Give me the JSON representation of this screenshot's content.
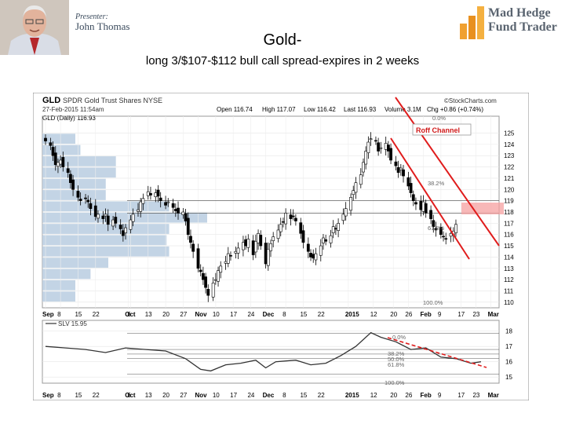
{
  "header": {
    "presenter_label": "Presenter:",
    "presenter_name": "John Thomas",
    "logo_line1": "Mad Hedge",
    "logo_line2": "Fund Trader",
    "title": "Gold-",
    "subtitle": "long 3/$107-$112 bull call spread-expires in 2 weeks"
  },
  "chart_data": [
    {
      "type": "candlestick",
      "symbol": "GLD",
      "name": "SPDR Gold Trust Shares NYSE",
      "date": "27-Feb-2015 11:54am",
      "source": "©StockCharts.com",
      "series_label": "GLD (Daily) 116.93",
      "quote": {
        "open": "Open 116.74",
        "high": "High 117.07",
        "low": "Low 116.42",
        "last": "Last 116.93",
        "volume": "Volume 3.1M",
        "chg": "Chg +0.86 (+0.74%)"
      },
      "annotation": "Roff Channel",
      "fib_labels": [
        "38.2%",
        "61.8%",
        "100.0%",
        "0.0%"
      ],
      "ylim": [
        109.5,
        126.5
      ],
      "y_ticks": [
        110,
        111,
        112,
        113,
        114,
        115,
        116,
        117,
        118,
        119,
        120,
        121,
        122,
        123,
        124,
        125
      ],
      "x_ticks": [
        "Sep",
        "8",
        "15",
        "22",
        "Oct",
        "6",
        "13",
        "20",
        "27",
        "Nov",
        "10",
        "17",
        "24",
        "Dec",
        "8",
        "15",
        "22",
        "2015",
        "12",
        "20",
        "26",
        "Feb",
        "9",
        "17",
        "23",
        "Mar"
      ],
      "x_tick_days": [
        0,
        6,
        13,
        20,
        33,
        34,
        41,
        48,
        55,
        61,
        68,
        75,
        82,
        88,
        96,
        103,
        110,
        121,
        131,
        139,
        145,
        151,
        158,
        166,
        172,
        178
      ],
      "volume_by_price": [
        {
          "low": 124,
          "high": 125,
          "size": 0.26
        },
        {
          "low": 123,
          "high": 124,
          "size": 0.3
        },
        {
          "low": 122,
          "high": 123,
          "size": 0.58
        },
        {
          "low": 121,
          "high": 122,
          "size": 0.58
        },
        {
          "low": 120,
          "high": 121,
          "size": 0.5
        },
        {
          "low": 119,
          "high": 120,
          "size": 0.5
        },
        {
          "low": 118,
          "high": 119,
          "size": 1.0
        },
        {
          "low": 117,
          "high": 118,
          "size": 1.3
        },
        {
          "low": 116,
          "high": 117,
          "size": 1.0
        },
        {
          "low": 115,
          "high": 116,
          "size": 0.98
        },
        {
          "low": 114,
          "high": 115,
          "size": 1.0
        },
        {
          "low": 113,
          "high": 114,
          "size": 0.52
        },
        {
          "low": 112,
          "high": 113,
          "size": 0.38
        },
        {
          "low": 111,
          "high": 112,
          "size": 0.26
        },
        {
          "low": 110,
          "high": 111,
          "size": 0.26
        }
      ],
      "closes": [
        {
          "day": 0,
          "close": 124.3
        },
        {
          "day": 2,
          "close": 123.9
        },
        {
          "day": 3,
          "close": 123.0
        },
        {
          "day": 4,
          "close": 122.2
        },
        {
          "day": 5,
          "close": 122.4
        },
        {
          "day": 6,
          "close": 122.6
        },
        {
          "day": 7,
          "close": 122.0
        },
        {
          "day": 9,
          "close": 121.5
        },
        {
          "day": 10,
          "close": 120.6
        },
        {
          "day": 11,
          "close": 120.0
        },
        {
          "day": 13,
          "close": 119.3
        },
        {
          "day": 14,
          "close": 119.0
        },
        {
          "day": 16,
          "close": 119.2
        },
        {
          "day": 17,
          "close": 118.9
        },
        {
          "day": 18,
          "close": 118.3
        },
        {
          "day": 20,
          "close": 117.6
        },
        {
          "day": 21,
          "close": 117.8
        },
        {
          "day": 23,
          "close": 117.4
        },
        {
          "day": 24,
          "close": 117.8
        },
        {
          "day": 25,
          "close": 116.9
        },
        {
          "day": 27,
          "close": 117.3
        },
        {
          "day": 28,
          "close": 117.0
        },
        {
          "day": 30,
          "close": 116.5
        },
        {
          "day": 31,
          "close": 115.9
        },
        {
          "day": 32,
          "close": 116.6
        },
        {
          "day": 34,
          "close": 117.3
        },
        {
          "day": 35,
          "close": 117.8
        },
        {
          "day": 37,
          "close": 118.2
        },
        {
          "day": 38,
          "close": 118.9
        },
        {
          "day": 39,
          "close": 119.2
        },
        {
          "day": 41,
          "close": 119.8
        },
        {
          "day": 42,
          "close": 119.5
        },
        {
          "day": 44,
          "close": 119.7
        },
        {
          "day": 45,
          "close": 119.4
        },
        {
          "day": 46,
          "close": 119.0
        },
        {
          "day": 48,
          "close": 118.6
        },
        {
          "day": 49,
          "close": 118.9
        },
        {
          "day": 51,
          "close": 118.4
        },
        {
          "day": 52,
          "close": 118.1
        },
        {
          "day": 53,
          "close": 117.9
        },
        {
          "day": 55,
          "close": 118.0
        },
        {
          "day": 56,
          "close": 117.2
        },
        {
          "day": 57,
          "close": 116.0
        },
        {
          "day": 58,
          "close": 115.3
        },
        {
          "day": 59,
          "close": 114.5
        },
        {
          "day": 61,
          "close": 113.0
        },
        {
          "day": 62,
          "close": 112.7
        },
        {
          "day": 63,
          "close": 112.0
        },
        {
          "day": 64,
          "close": 111.3
        },
        {
          "day": 65,
          "close": 110.6
        },
        {
          "day": 67,
          "close": 111.7
        },
        {
          "day": 68,
          "close": 112.0
        },
        {
          "day": 69,
          "close": 112.8
        },
        {
          "day": 70,
          "close": 113.2
        },
        {
          "day": 72,
          "close": 113.6
        },
        {
          "day": 73,
          "close": 114.3
        },
        {
          "day": 74,
          "close": 114.1
        },
        {
          "day": 76,
          "close": 114.5
        },
        {
          "day": 77,
          "close": 114.8
        },
        {
          "day": 79,
          "close": 115.3
        },
        {
          "day": 80,
          "close": 115.0
        },
        {
          "day": 81,
          "close": 115.6
        },
        {
          "day": 83,
          "close": 114.2
        },
        {
          "day": 84,
          "close": 115.4
        },
        {
          "day": 85,
          "close": 116.1
        },
        {
          "day": 86,
          "close": 115.0
        },
        {
          "day": 88,
          "close": 113.4
        },
        {
          "day": 89,
          "close": 114.7
        },
        {
          "day": 90,
          "close": 115.2
        },
        {
          "day": 91,
          "close": 115.8
        },
        {
          "day": 93,
          "close": 116.4
        },
        {
          "day": 94,
          "close": 116.9
        },
        {
          "day": 95,
          "close": 117.1
        },
        {
          "day": 96,
          "close": 117.9
        },
        {
          "day": 98,
          "close": 117.4
        },
        {
          "day": 99,
          "close": 117.6
        },
        {
          "day": 100,
          "close": 117.2
        },
        {
          "day": 102,
          "close": 116.1
        },
        {
          "day": 103,
          "close": 115.3
        },
        {
          "day": 105,
          "close": 114.5
        },
        {
          "day": 106,
          "close": 114.0
        },
        {
          "day": 107,
          "close": 113.9
        },
        {
          "day": 108,
          "close": 114.3
        },
        {
          "day": 110,
          "close": 115.0
        },
        {
          "day": 111,
          "close": 115.7
        },
        {
          "day": 112,
          "close": 115.4
        },
        {
          "day": 114,
          "close": 115.9
        },
        {
          "day": 115,
          "close": 116.7
        },
        {
          "day": 116,
          "close": 116.5
        },
        {
          "day": 117,
          "close": 117.0
        },
        {
          "day": 119,
          "close": 117.8
        },
        {
          "day": 120,
          "close": 118.3
        },
        {
          "day": 122,
          "close": 119.3
        },
        {
          "day": 123,
          "close": 119.9
        },
        {
          "day": 124,
          "close": 120.6
        },
        {
          "day": 126,
          "close": 121.3
        },
        {
          "day": 127,
          "close": 122.4
        },
        {
          "day": 128,
          "close": 123.4
        },
        {
          "day": 129,
          "close": 124.2
        },
        {
          "day": 130,
          "close": 124.5
        },
        {
          "day": 132,
          "close": 124.3
        },
        {
          "day": 133,
          "close": 123.4
        },
        {
          "day": 134,
          "close": 123.7
        },
        {
          "day": 136,
          "close": 124.1
        },
        {
          "day": 137,
          "close": 123.4
        },
        {
          "day": 138,
          "close": 122.6
        },
        {
          "day": 140,
          "close": 122.1
        },
        {
          "day": 141,
          "close": 121.5
        },
        {
          "day": 142,
          "close": 121.9
        },
        {
          "day": 143,
          "close": 121.2
        },
        {
          "day": 145,
          "close": 120.3
        },
        {
          "day": 146,
          "close": 119.7
        },
        {
          "day": 147,
          "close": 119.0
        },
        {
          "day": 148,
          "close": 118.7
        },
        {
          "day": 150,
          "close": 118.2
        },
        {
          "day": 151,
          "close": 118.9
        },
        {
          "day": 152,
          "close": 117.9
        },
        {
          "day": 154,
          "close": 117.4
        },
        {
          "day": 155,
          "close": 116.7
        },
        {
          "day": 156,
          "close": 116.4
        },
        {
          "day": 158,
          "close": 116.0
        },
        {
          "day": 159,
          "close": 115.8
        },
        {
          "day": 160,
          "close": 115.6
        },
        {
          "day": 162,
          "close": 116.1
        },
        {
          "day": 163,
          "close": 116.3
        },
        {
          "day": 164,
          "close": 116.9
        }
      ],
      "rsi_panel": {
        "label": "SLV 15.95",
        "ylim": [
          14.7,
          18.6
        ],
        "y_ticks": [
          15,
          16,
          17,
          18
        ],
        "fib_labels": [
          "0.0%",
          "38.2%",
          "50.0%",
          "61.8%",
          "100.0%"
        ],
        "values": [
          {
            "day": 0,
            "value": 17.0
          },
          {
            "day": 8,
            "value": 16.9
          },
          {
            "day": 16,
            "value": 16.8
          },
          {
            "day": 24,
            "value": 16.6
          },
          {
            "day": 32,
            "value": 16.9
          },
          {
            "day": 40,
            "value": 16.8
          },
          {
            "day": 48,
            "value": 16.7
          },
          {
            "day": 56,
            "value": 16.2
          },
          {
            "day": 62,
            "value": 15.5
          },
          {
            "day": 66,
            "value": 15.4
          },
          {
            "day": 72,
            "value": 15.8
          },
          {
            "day": 78,
            "value": 15.9
          },
          {
            "day": 84,
            "value": 16.1
          },
          {
            "day": 88,
            "value": 15.6
          },
          {
            "day": 92,
            "value": 16.0
          },
          {
            "day": 100,
            "value": 16.1
          },
          {
            "day": 106,
            "value": 15.8
          },
          {
            "day": 112,
            "value": 15.9
          },
          {
            "day": 118,
            "value": 16.4
          },
          {
            "day": 124,
            "value": 17.0
          },
          {
            "day": 130,
            "value": 17.9
          },
          {
            "day": 134,
            "value": 17.6
          },
          {
            "day": 140,
            "value": 17.3
          },
          {
            "day": 146,
            "value": 16.8
          },
          {
            "day": 152,
            "value": 16.9
          },
          {
            "day": 158,
            "value": 16.3
          },
          {
            "day": 164,
            "value": 16.2
          },
          {
            "day": 170,
            "value": 15.9
          },
          {
            "day": 174,
            "value": 16.0
          }
        ]
      }
    }
  ]
}
